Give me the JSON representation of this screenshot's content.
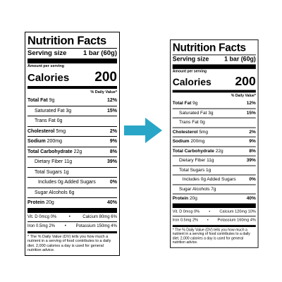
{
  "labels": [
    {
      "title": "Nutrition Facts",
      "serving_label": "Serving size",
      "serving_size": "1 bar (60g)",
      "amount_per_serving": "Amount per serving",
      "calories_label": "Calories",
      "calories": "200",
      "dv_header": "% Daily Value*",
      "nutrients": [
        {
          "name": "Total Fat",
          "amount": "9g",
          "dv": "12%",
          "sub": [
            {
              "name": "Saturated Fat",
              "amount": "3g",
              "dv": "15%"
            },
            {
              "name": "Trans Fat",
              "amount": "0g"
            }
          ]
        },
        {
          "name": "Cholesterol",
          "amount": "5mg",
          "dv": "2%"
        },
        {
          "name": "Sodium",
          "amount": "200mg",
          "dv": "9%"
        },
        {
          "name": "Total Carbohydrate",
          "amount": "22g",
          "dv": "8%",
          "sub": [
            {
              "name": "Dietary Fiber",
              "amount": "11g",
              "dv": "39%"
            },
            {
              "name": "Total Sugars",
              "amount": "1g",
              "sub": [
                {
                  "name": "Includes 0g Added Sugars",
                  "dv": "0%"
                }
              ]
            },
            {
              "name": "Sugar Alcohols",
              "amount": "6g"
            }
          ]
        },
        {
          "name": "Protein",
          "amount": "20g",
          "dv": "40%"
        }
      ],
      "vitamins": [
        [
          "Vit. D 0mcg 0%",
          "Calcium 80mg 6%"
        ],
        [
          "Iron 0.5mg 2%",
          "Potassium 150mg 4%"
        ]
      ],
      "footnote": "* The % Daily Value (DV) tells you how much a nutrient in a serving of food contributes to a daily diet. 2,000 calories a day is used for general nutrition advice."
    },
    {
      "title": "Nutrition Facts",
      "serving_label": "Serving size",
      "serving_size": "1 bar (60g)",
      "amount_per_serving": "Amount per serving",
      "calories_label": "Calories",
      "calories": "200",
      "dv_header": "% Daily Value*",
      "nutrients": [
        {
          "name": "Total Fat",
          "amount": "9g",
          "dv": "12%",
          "sub": [
            {
              "name": "Saturated Fat",
              "amount": "3g",
              "dv": "15%"
            },
            {
              "name": "Trans Fat",
              "amount": "0g"
            }
          ]
        },
        {
          "name": "Cholesterol",
          "amount": "5mg",
          "dv": "2%"
        },
        {
          "name": "Sodium",
          "amount": "200mg",
          "dv": "9%"
        },
        {
          "name": "Total Carbohydrate",
          "amount": "22g",
          "dv": "8%",
          "sub": [
            {
              "name": "Dietary Fiber",
              "amount": "11g",
              "dv": "39%"
            },
            {
              "name": "Total Sugars",
              "amount": "1g",
              "sub": [
                {
                  "name": "Includes 0g Added Sugars",
                  "dv": "0%"
                }
              ]
            },
            {
              "name": "Sugar Alcohols",
              "amount": "7g"
            }
          ]
        },
        {
          "name": "Protein",
          "amount": "20g",
          "dv": "40%"
        }
      ],
      "vitamins": [
        [
          "Vit. D 0mcg 0%",
          "Calcium 120mg 10%"
        ],
        [
          "Iron 0.5mg 2%",
          "Potassium 160mg 4%"
        ]
      ],
      "footnote": "* The % Daily Value (DV) tells you how much a nutrient in a serving of food contributes to a daily diet. 2,000 calories a day is used for general nutrition advice."
    }
  ]
}
